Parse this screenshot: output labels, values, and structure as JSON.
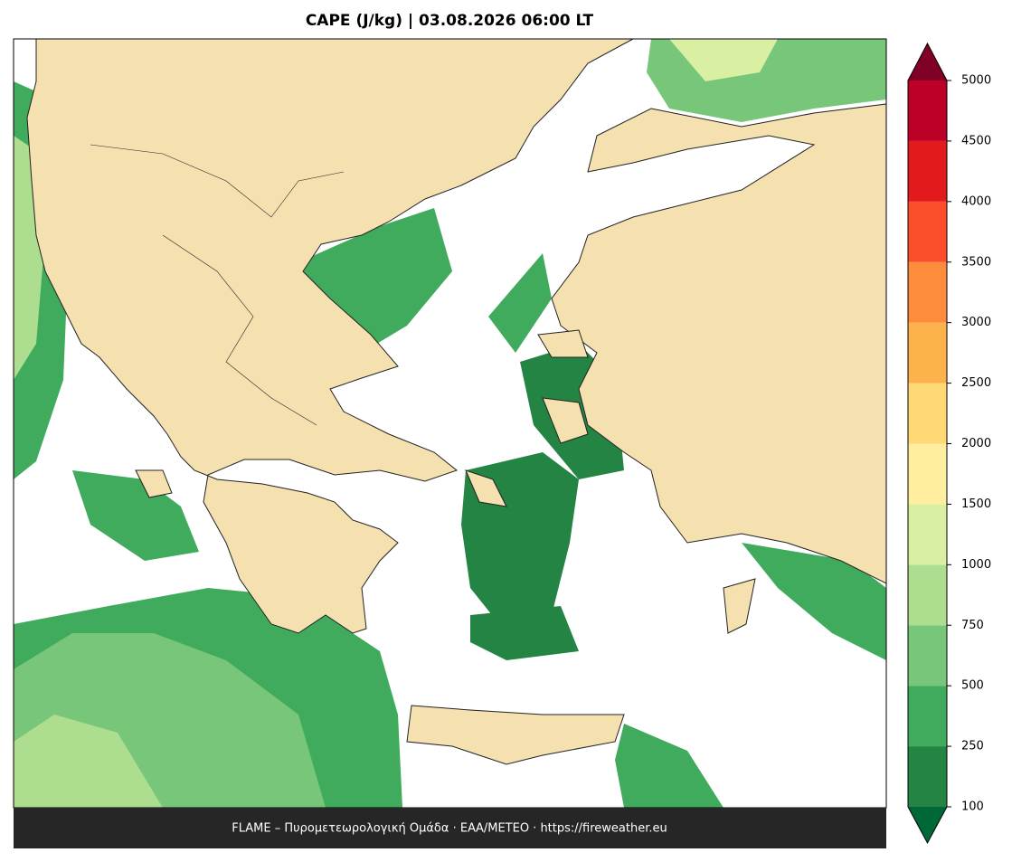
{
  "title": "CAPE (J/kg)  |  03.08.2026 06:00 LT",
  "colorbar": {
    "levels": [
      100,
      250,
      500,
      750,
      1000,
      1500,
      2000,
      2500,
      3000,
      3500,
      4000,
      4500,
      5000
    ],
    "colors": [
      "#238443",
      "#41ab5d",
      "#78c679",
      "#addd8e",
      "#d9f0a3",
      "#ffeda0",
      "#fed976",
      "#feb24c",
      "#fd8d3c",
      "#fc4e2a",
      "#e31a1c",
      "#bd0026"
    ],
    "under_color": "#006837",
    "over_color": "#800026"
  },
  "footer": "FLAME – Πυρομετεωρολογική Ομάδα · ΕΑΑ/METEO · https://fireweather.eu"
}
